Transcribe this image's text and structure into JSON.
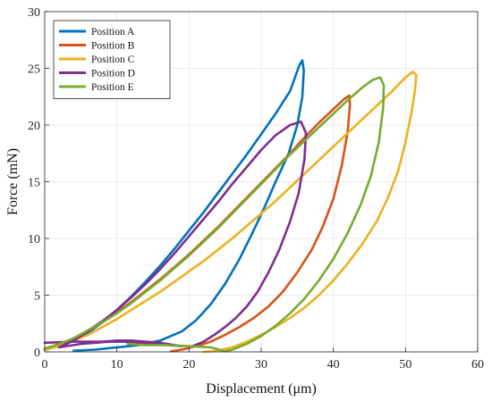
{
  "chart_data": {
    "type": "line",
    "xlabel": "Displacement (μm)",
    "ylabel": "Force (mN)",
    "xlim": [
      0,
      60
    ],
    "ylim": [
      0,
      30
    ],
    "xticks": [
      0,
      10,
      20,
      30,
      40,
      50,
      60
    ],
    "yticks": [
      0,
      5,
      10,
      15,
      20,
      25,
      30
    ],
    "grid": true,
    "legend_position": "top-left",
    "series": [
      {
        "name": "Position A",
        "color": "#0072BD",
        "points": [
          [
            0,
            0.2
          ],
          [
            2,
            0.5
          ],
          [
            4,
            1
          ],
          [
            6,
            1.7
          ],
          [
            8,
            2.6
          ],
          [
            10,
            3.7
          ],
          [
            12,
            4.9
          ],
          [
            14,
            6.2
          ],
          [
            16,
            7.6
          ],
          [
            18,
            9.1
          ],
          [
            20,
            10.7
          ],
          [
            22,
            12.3
          ],
          [
            24,
            14.0
          ],
          [
            26,
            15.7
          ],
          [
            28,
            17.4
          ],
          [
            30,
            19.2
          ],
          [
            32,
            21.0
          ],
          [
            34,
            23.0
          ],
          [
            35.3,
            25.3
          ],
          [
            35.7,
            25.7
          ],
          [
            35.9,
            24.8
          ],
          [
            35.7,
            22.5
          ],
          [
            35.0,
            20.0
          ],
          [
            33.8,
            17.5
          ],
          [
            32.0,
            15.0
          ],
          [
            30.5,
            12.8
          ],
          [
            28.8,
            10.5
          ],
          [
            27,
            8.2
          ],
          [
            25,
            6.0
          ],
          [
            23,
            4.2
          ],
          [
            21,
            2.8
          ],
          [
            19,
            1.8
          ],
          [
            16,
            1.0
          ],
          [
            13,
            0.6
          ],
          [
            10,
            0.4
          ],
          [
            7,
            0.2
          ],
          [
            4,
            0.1
          ]
        ]
      },
      {
        "name": "Position B",
        "color": "#D95319",
        "points": [
          [
            0,
            0.2
          ],
          [
            2,
            0.6
          ],
          [
            4,
            1.2
          ],
          [
            6,
            1.9
          ],
          [
            8,
            2.7
          ],
          [
            10,
            3.5
          ],
          [
            12,
            4.4
          ],
          [
            14,
            5.4
          ],
          [
            16,
            6.4
          ],
          [
            18,
            7.5
          ],
          [
            20,
            8.6
          ],
          [
            22,
            9.8
          ],
          [
            24,
            11.0
          ],
          [
            26,
            12.3
          ],
          [
            28,
            13.6
          ],
          [
            30,
            14.9
          ],
          [
            32,
            16.2
          ],
          [
            34,
            17.5
          ],
          [
            36,
            18.9
          ],
          [
            38,
            20.2
          ],
          [
            40,
            21.4
          ],
          [
            41.5,
            22.3
          ],
          [
            42.2,
            22.6
          ],
          [
            42.3,
            21.8
          ],
          [
            42.0,
            19.5
          ],
          [
            41.2,
            16.5
          ],
          [
            40,
            13.5
          ],
          [
            38.5,
            11.0
          ],
          [
            37,
            9.0
          ],
          [
            35,
            7.0
          ],
          [
            33,
            5.3
          ],
          [
            31,
            4.0
          ],
          [
            29,
            3.0
          ],
          [
            27,
            2.2
          ],
          [
            25,
            1.5
          ],
          [
            23,
            0.9
          ],
          [
            21,
            0.5
          ],
          [
            19,
            0.2
          ],
          [
            17.5,
            0.05
          ]
        ]
      },
      {
        "name": "Position C",
        "color": "#EDB120",
        "points": [
          [
            0,
            0.2
          ],
          [
            2,
            0.5
          ],
          [
            4,
            1.0
          ],
          [
            6,
            1.5
          ],
          [
            8,
            2.2
          ],
          [
            10,
            2.9
          ],
          [
            12,
            3.7
          ],
          [
            14,
            4.5
          ],
          [
            16,
            5.3
          ],
          [
            18,
            6.2
          ],
          [
            20,
            7.1
          ],
          [
            22,
            8.0
          ],
          [
            24,
            9.0
          ],
          [
            26,
            10.0
          ],
          [
            28,
            11.1
          ],
          [
            30,
            12.2
          ],
          [
            32,
            13.3
          ],
          [
            34,
            14.5
          ],
          [
            36,
            15.7
          ],
          [
            38,
            16.9
          ],
          [
            40,
            18.1
          ],
          [
            42,
            19.3
          ],
          [
            44,
            20.5
          ],
          [
            46,
            21.7
          ],
          [
            48,
            22.9
          ],
          [
            50,
            24.2
          ],
          [
            51,
            24.7
          ],
          [
            51.5,
            24.4
          ],
          [
            51.3,
            23.0
          ],
          [
            50.8,
            21.0
          ],
          [
            50.0,
            18.5
          ],
          [
            49,
            16.0
          ],
          [
            47.5,
            13.5
          ],
          [
            46,
            11.5
          ],
          [
            44,
            9.5
          ],
          [
            42,
            7.8
          ],
          [
            40,
            6.3
          ],
          [
            38,
            5.0
          ],
          [
            36,
            3.9
          ],
          [
            34,
            3.0
          ],
          [
            32,
            2.2
          ],
          [
            30,
            1.5
          ],
          [
            28,
            0.9
          ],
          [
            26,
            0.4
          ],
          [
            24,
            0.1
          ],
          [
            22,
            0.0
          ]
        ]
      },
      {
        "name": "Position D",
        "color": "#7E2F8E",
        "points": [
          [
            0,
            0.8
          ],
          [
            2,
            0.85
          ],
          [
            4,
            0.9
          ],
          [
            6,
            0.9
          ],
          [
            8,
            0.9
          ],
          [
            10,
            1.0
          ],
          [
            12,
            1.0
          ],
          [
            14,
            0.9
          ],
          [
            16,
            0.8
          ],
          [
            18,
            0.6
          ],
          [
            19,
            0.5
          ],
          [
            17,
            0.6
          ],
          [
            15,
            0.7
          ],
          [
            13,
            0.8
          ],
          [
            11,
            0.9
          ],
          [
            9,
            0.9
          ],
          [
            7,
            0.8
          ],
          [
            5,
            0.7
          ],
          [
            3,
            0.5
          ],
          [
            2,
            0.4
          ],
          [
            4,
            1.0
          ],
          [
            6,
            1.8
          ],
          [
            8,
            2.7
          ],
          [
            10,
            3.7
          ],
          [
            12,
            4.8
          ],
          [
            14,
            6.0
          ],
          [
            16,
            7.3
          ],
          [
            18,
            8.7
          ],
          [
            20,
            10.2
          ],
          [
            22,
            11.7
          ],
          [
            24,
            13.2
          ],
          [
            26,
            14.8
          ],
          [
            28,
            16.3
          ],
          [
            30,
            17.8
          ],
          [
            32,
            19.1
          ],
          [
            34,
            20.0
          ],
          [
            35.5,
            20.3
          ],
          [
            36.2,
            19.3
          ],
          [
            36.0,
            17.0
          ],
          [
            35.2,
            14.0
          ],
          [
            34.0,
            11.5
          ],
          [
            32.5,
            9.0
          ],
          [
            31.0,
            7.0
          ],
          [
            29.5,
            5.3
          ],
          [
            28,
            4.0
          ],
          [
            26.5,
            3.0
          ],
          [
            25,
            2.2
          ],
          [
            23.5,
            1.5
          ],
          [
            22,
            0.9
          ],
          [
            20.5,
            0.5
          ]
        ]
      },
      {
        "name": "Position E",
        "color": "#77AC30",
        "points": [
          [
            0,
            0.3
          ],
          [
            2,
            0.7
          ],
          [
            4,
            1.2
          ],
          [
            6,
            1.9
          ],
          [
            8,
            2.6
          ],
          [
            10,
            3.4
          ],
          [
            12,
            4.3
          ],
          [
            14,
            5.3
          ],
          [
            16,
            6.3
          ],
          [
            18,
            7.4
          ],
          [
            20,
            8.5
          ],
          [
            22,
            9.7
          ],
          [
            24,
            10.9
          ],
          [
            26,
            12.2
          ],
          [
            28,
            13.5
          ],
          [
            30,
            14.8
          ],
          [
            32,
            16.1
          ],
          [
            34,
            17.4
          ],
          [
            36,
            18.6
          ],
          [
            38,
            19.8
          ],
          [
            40,
            21.0
          ],
          [
            42,
            22.2
          ],
          [
            44,
            23.3
          ],
          [
            45.5,
            24.0
          ],
          [
            46.5,
            24.2
          ],
          [
            47.0,
            23.5
          ],
          [
            46.9,
            21.5
          ],
          [
            46.3,
            18.5
          ],
          [
            45.2,
            15.5
          ],
          [
            43.8,
            13.0
          ],
          [
            42,
            10.5
          ],
          [
            40,
            8.2
          ],
          [
            38,
            6.3
          ],
          [
            36,
            4.7
          ],
          [
            34,
            3.4
          ],
          [
            32,
            2.3
          ],
          [
            30,
            1.4
          ],
          [
            28,
            0.7
          ],
          [
            26,
            0.2
          ],
          [
            25,
            0.05
          ],
          [
            23,
            0.4
          ],
          [
            20,
            0.5
          ],
          [
            17,
            0.6
          ],
          [
            14,
            0.6
          ],
          [
            11.5,
            0.7
          ]
        ]
      }
    ]
  }
}
